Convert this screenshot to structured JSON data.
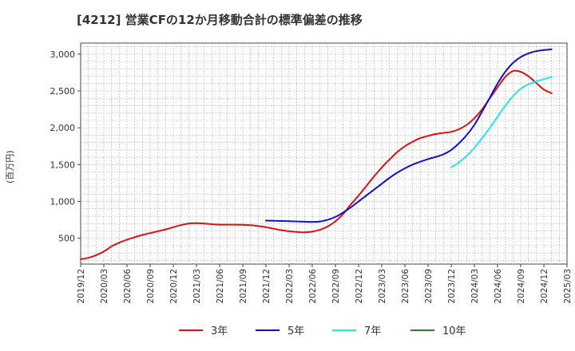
{
  "chart_data": {
    "type": "line",
    "title": "[4212]  営業CFの12か月移動合計の標準偏差の推移",
    "ylabel": "(百万円)",
    "xlabel": "",
    "ylim": [
      150,
      3150
    ],
    "yticks": [
      500,
      1000,
      1500,
      2000,
      2500,
      3000
    ],
    "ytick_labels": [
      "500",
      "1,000",
      "1,500",
      "2,000",
      "2,500",
      "3,000"
    ],
    "xticks": [
      "2019-12",
      "2020-03",
      "2020-06",
      "2020-09",
      "2020-12",
      "2021-03",
      "2021-06",
      "2021-09",
      "2021-12",
      "2022-03",
      "2022-06",
      "2022-09",
      "2022-12",
      "2023-03",
      "2023-06",
      "2023-09",
      "2023-12",
      "2024-03",
      "2024-06",
      "2024-09",
      "2024-12",
      "2025-03"
    ],
    "xtick_labels": [
      "2019/12",
      "2020/03",
      "2020/06",
      "2020/09",
      "2020/12",
      "2021/03",
      "2021/06",
      "2021/09",
      "2021/12",
      "2022/03",
      "2022/06",
      "2022/09",
      "2022/12",
      "2023/03",
      "2023/06",
      "2023/09",
      "2023/12",
      "2024/03",
      "2024/06",
      "2024/09",
      "2024/12",
      "2025/03"
    ],
    "grid": true,
    "legend_position": "bottom",
    "series": [
      {
        "name": "3年",
        "color": "#dd1111",
        "points": [
          [
            "2019-12",
            215
          ],
          [
            "2020-01",
            235
          ],
          [
            "2020-02",
            270
          ],
          [
            "2020-03",
            320
          ],
          [
            "2020-04",
            390
          ],
          [
            "2020-05",
            440
          ],
          [
            "2020-06",
            480
          ],
          [
            "2020-07",
            515
          ],
          [
            "2020-08",
            545
          ],
          [
            "2020-09",
            570
          ],
          [
            "2020-10",
            595
          ],
          [
            "2020-11",
            620
          ],
          [
            "2020-12",
            650
          ],
          [
            "2021-01",
            680
          ],
          [
            "2021-02",
            700
          ],
          [
            "2021-03",
            705
          ],
          [
            "2021-04",
            700
          ],
          [
            "2021-05",
            690
          ],
          [
            "2021-06",
            685
          ],
          [
            "2021-07",
            685
          ],
          [
            "2021-08",
            685
          ],
          [
            "2021-09",
            683
          ],
          [
            "2021-10",
            677
          ],
          [
            "2021-11",
            665
          ],
          [
            "2021-12",
            650
          ],
          [
            "2022-01",
            630
          ],
          [
            "2022-02",
            610
          ],
          [
            "2022-03",
            595
          ],
          [
            "2022-04",
            585
          ],
          [
            "2022-05",
            580
          ],
          [
            "2022-06",
            590
          ],
          [
            "2022-07",
            615
          ],
          [
            "2022-08",
            660
          ],
          [
            "2022-09",
            730
          ],
          [
            "2022-10",
            830
          ],
          [
            "2022-11",
            960
          ],
          [
            "2022-12",
            1080
          ],
          [
            "2023-01",
            1210
          ],
          [
            "2023-02",
            1340
          ],
          [
            "2023-03",
            1460
          ],
          [
            "2023-04",
            1570
          ],
          [
            "2023-05",
            1670
          ],
          [
            "2023-06",
            1750
          ],
          [
            "2023-07",
            1810
          ],
          [
            "2023-08",
            1860
          ],
          [
            "2023-09",
            1890
          ],
          [
            "2023-10",
            1915
          ],
          [
            "2023-11",
            1930
          ],
          [
            "2023-12",
            1945
          ],
          [
            "2024-01",
            1980
          ],
          [
            "2024-02",
            2040
          ],
          [
            "2024-03",
            2130
          ],
          [
            "2024-04",
            2250
          ],
          [
            "2024-05",
            2400
          ],
          [
            "2024-06",
            2550
          ],
          [
            "2024-07",
            2690
          ],
          [
            "2024-08",
            2770
          ],
          [
            "2024-09",
            2760
          ],
          [
            "2024-10",
            2700
          ],
          [
            "2024-11",
            2610
          ],
          [
            "2024-12",
            2520
          ],
          [
            "2025-01",
            2470
          ]
        ]
      },
      {
        "name": "5年",
        "color": "#1111cc",
        "points": [
          [
            "2021-12",
            740
          ],
          [
            "2022-01",
            738
          ],
          [
            "2022-02",
            735
          ],
          [
            "2022-03",
            732
          ],
          [
            "2022-04",
            728
          ],
          [
            "2022-05",
            725
          ],
          [
            "2022-06",
            722
          ],
          [
            "2022-07",
            728
          ],
          [
            "2022-08",
            750
          ],
          [
            "2022-09",
            790
          ],
          [
            "2022-10",
            850
          ],
          [
            "2022-11",
            920
          ],
          [
            "2022-12",
            1000
          ],
          [
            "2023-01",
            1080
          ],
          [
            "2023-02",
            1160
          ],
          [
            "2023-03",
            1240
          ],
          [
            "2023-04",
            1320
          ],
          [
            "2023-05",
            1390
          ],
          [
            "2023-06",
            1450
          ],
          [
            "2023-07",
            1500
          ],
          [
            "2023-08",
            1540
          ],
          [
            "2023-09",
            1575
          ],
          [
            "2023-10",
            1605
          ],
          [
            "2023-11",
            1640
          ],
          [
            "2023-12",
            1700
          ],
          [
            "2024-01",
            1790
          ],
          [
            "2024-02",
            1900
          ],
          [
            "2024-03",
            2040
          ],
          [
            "2024-04",
            2220
          ],
          [
            "2024-05",
            2410
          ],
          [
            "2024-06",
            2600
          ],
          [
            "2024-07",
            2760
          ],
          [
            "2024-08",
            2880
          ],
          [
            "2024-09",
            2960
          ],
          [
            "2024-10",
            3010
          ],
          [
            "2024-11",
            3040
          ],
          [
            "2024-12",
            3055
          ],
          [
            "2025-01",
            3065
          ]
        ]
      },
      {
        "name": "7年",
        "color": "#22e8ee",
        "points": [
          [
            "2023-12",
            1465
          ],
          [
            "2024-01",
            1530
          ],
          [
            "2024-02",
            1620
          ],
          [
            "2024-03",
            1730
          ],
          [
            "2024-04",
            1860
          ],
          [
            "2024-05",
            2000
          ],
          [
            "2024-06",
            2150
          ],
          [
            "2024-07",
            2300
          ],
          [
            "2024-08",
            2430
          ],
          [
            "2024-09",
            2530
          ],
          [
            "2024-10",
            2590
          ],
          [
            "2024-11",
            2630
          ],
          [
            "2024-12",
            2660
          ],
          [
            "2025-01",
            2690
          ]
        ]
      },
      {
        "name": "10年",
        "color": "#228822",
        "points": []
      }
    ]
  }
}
